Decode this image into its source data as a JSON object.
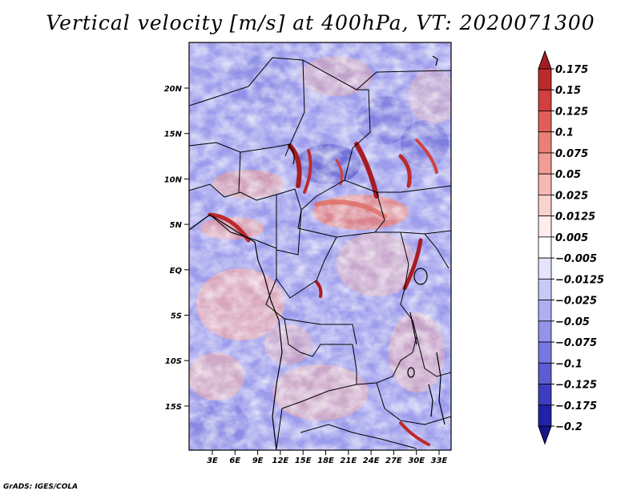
{
  "title": "Vertical velocity [m/s] at 400hPa, VT: 2020071300",
  "credit": "GrADS: IGES/COLA",
  "lat_ticks": [
    "20N",
    "15N",
    "10N",
    "5N",
    "EQ",
    "5S",
    "10S",
    "15S"
  ],
  "lon_ticks": [
    "3E",
    "6E",
    "9E",
    "12E",
    "15E",
    "18E",
    "21E",
    "24E",
    "27E",
    "30E",
    "33E"
  ],
  "colorbar": {
    "labels": [
      "0.175",
      "0.15",
      "0.125",
      "0.1",
      "0.075",
      "0.05",
      "0.025",
      "0.0125",
      "0.005",
      "−0.005",
      "−0.0125",
      "−0.025",
      "−0.05",
      "−0.075",
      "−0.1",
      "−0.125",
      "−0.175",
      "−0.2"
    ],
    "colors": [
      "#a51d23",
      "#bd2a2c",
      "#d13f3e",
      "#df5f58",
      "#ea7f77",
      "#f19c94",
      "#f6b9b2",
      "#fad3cf",
      "#fdeceb",
      "#ffffff",
      "#e4e4fb",
      "#c9c9f6",
      "#aeaef1",
      "#9393ea",
      "#7777e0",
      "#5b5bd2",
      "#3d3dbf",
      "#2222a6",
      "#14148c"
    ]
  }
}
